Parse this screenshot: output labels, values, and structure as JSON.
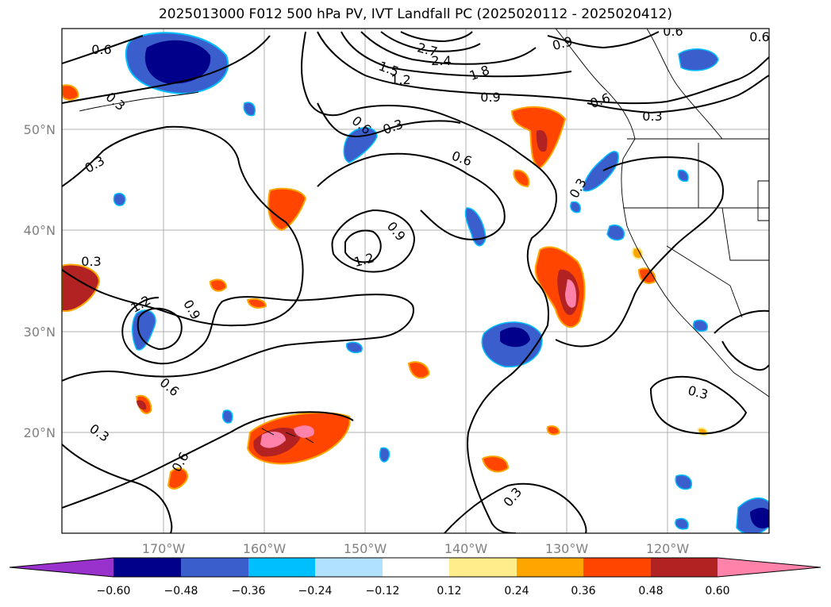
{
  "title": "2025013000 F012 500 hPa PV, IVT Landfall PC (2025020112 - 2025020412)",
  "latitude_labels": [
    "50°N",
    "40°N",
    "30°N",
    "20°N"
  ],
  "longitude_labels": [
    "170°W",
    "160°W",
    "150°W",
    "140°W",
    "130°W",
    "120°W"
  ],
  "colorbar": {
    "tick_labels": [
      "−0.60",
      "−0.48",
      "−0.36",
      "−0.24",
      "−0.12",
      "0.12",
      "0.24",
      "0.36",
      "0.48",
      "0.60"
    ],
    "colors": [
      "#9932cc",
      "#00008b",
      "#3a5fcd",
      "#00bfff",
      "#b0e2ff",
      "#ffffff",
      "#ffec8b",
      "#ffa500",
      "#ff4500",
      "#b22222",
      "#ff82ab"
    ]
  },
  "contour_labels": [
    {
      "text": "0.6"
    },
    {
      "text": "0.3"
    },
    {
      "text": "0.3"
    },
    {
      "text": "0.3"
    },
    {
      "text": "0.6"
    },
    {
      "text": "0.3"
    },
    {
      "text": "0.6"
    },
    {
      "text": "0.9"
    },
    {
      "text": "1.2"
    },
    {
      "text": "1.5"
    },
    {
      "text": "1.2"
    },
    {
      "text": "2.7"
    },
    {
      "text": "2.4"
    },
    {
      "text": "1.8"
    },
    {
      "text": "0.9"
    },
    {
      "text": "0.6"
    },
    {
      "text": "0.3"
    },
    {
      "text": "0.9"
    },
    {
      "text": "0.6"
    },
    {
      "text": "0.3"
    },
    {
      "text": "1.2"
    },
    {
      "text": "0.9"
    },
    {
      "text": "0.6"
    },
    {
      "text": "0.3"
    },
    {
      "text": "0.6"
    },
    {
      "text": "0.3"
    },
    {
      "text": "0.3"
    },
    {
      "text": "0.6"
    }
  ]
}
